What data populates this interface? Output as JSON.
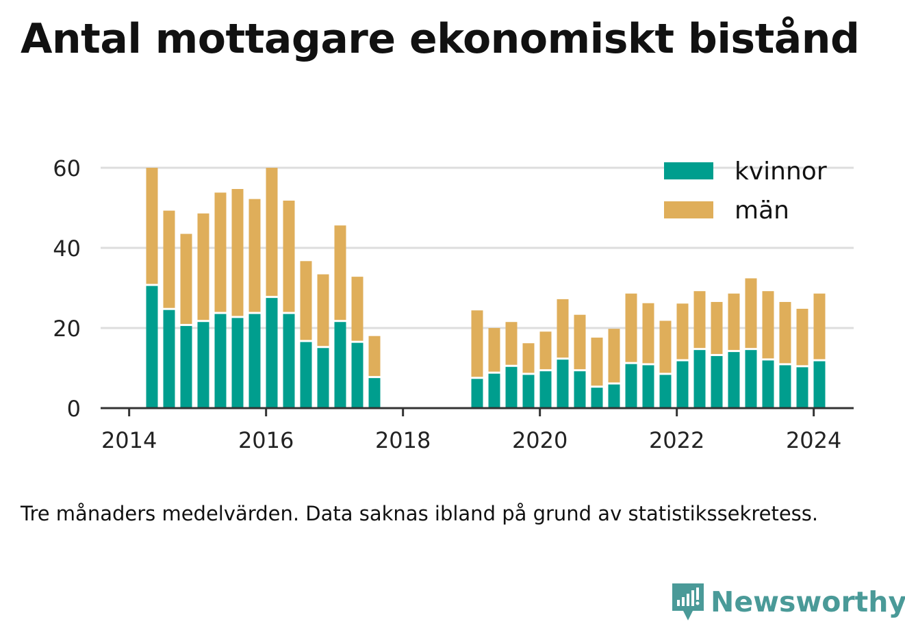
{
  "title": "Antal mottagare ekonomiskt bistånd",
  "note": "Tre månaders medelvärden. Data saknas ibland på grund av statistikssekretess.",
  "brand": {
    "name": "Newsworthy",
    "icon": "newsworthy-logo-icon"
  },
  "colors": {
    "kvinnor": "#009e8e",
    "man": "#dfae5a",
    "grid": "#dddddd",
    "axis": "#333333",
    "text": "#222222"
  },
  "chart_data": {
    "type": "bar",
    "stacked": true,
    "title": "Antal mottagare ekonomiskt bistånd",
    "xlabel": "",
    "ylabel": "",
    "ylim": [
      0,
      60
    ],
    "yticks": [
      0,
      20,
      40,
      60
    ],
    "xticks": [
      "2014",
      "2016",
      "2018",
      "2020",
      "2022",
      "2024"
    ],
    "xlim": [
      "2013-08",
      "2024-08"
    ],
    "grid": true,
    "legend_position": "top-right",
    "x": [
      "2014-05",
      "2014-08",
      "2014-11",
      "2015-02",
      "2015-05",
      "2015-08",
      "2015-11",
      "2016-02",
      "2016-05",
      "2016-08",
      "2016-11",
      "2017-02",
      "2017-05",
      "2017-08",
      "2019-02",
      "2019-05",
      "2019-08",
      "2019-11",
      "2020-02",
      "2020-05",
      "2020-08",
      "2020-11",
      "2021-02",
      "2021-05",
      "2021-08",
      "2021-11",
      "2022-02",
      "2022-05",
      "2022-08",
      "2022-11",
      "2023-02",
      "2023-05",
      "2023-08",
      "2023-11",
      "2024-02"
    ],
    "series": [
      {
        "name": "kvinnor",
        "color": "#009e8e",
        "values": [
          30.5,
          24.5,
          20.5,
          21.5,
          23.5,
          22.5,
          23.5,
          27.5,
          23.5,
          16.5,
          15,
          21.5,
          16.3,
          7.5,
          7.3,
          8.6,
          10.3,
          8.3,
          9.2,
          12.1,
          9.2,
          5.1,
          5.9,
          11,
          10.7,
          8.3,
          11.7,
          14.5,
          13,
          14,
          14.5,
          11.9,
          10.7,
          10.2,
          11.7
        ]
      },
      {
        "name": "män",
        "color": "#dfae5a",
        "values": [
          29.5,
          24.8,
          23,
          27.1,
          30.3,
          32.2,
          28.7,
          32.5,
          28.3,
          20.2,
          18.4,
          24.1,
          16.5,
          10.5,
          17.1,
          11.4,
          11.2,
          7.9,
          9.9,
          15.1,
          14.1,
          12.5,
          13.9,
          17.6,
          15.5,
          13.5,
          14.4,
          14.7,
          13.5,
          14.6,
          17.9,
          17.3,
          15.8,
          14.6,
          16.9
        ]
      }
    ]
  }
}
